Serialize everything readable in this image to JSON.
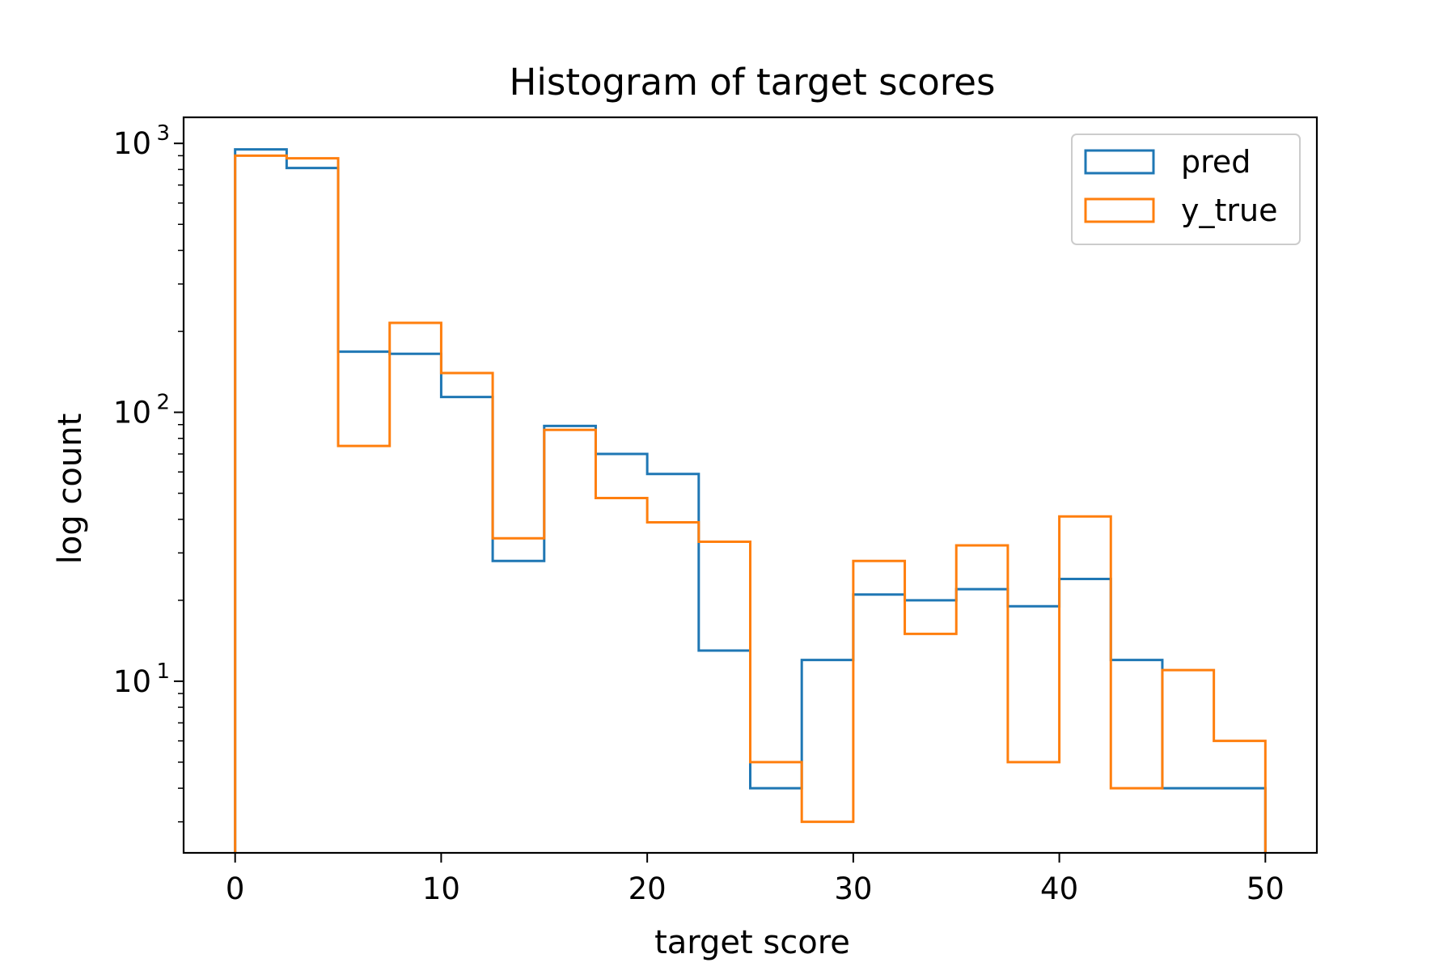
{
  "chart_data": {
    "type": "histogram",
    "title": "Histogram of target scores",
    "xlabel": "target score",
    "ylabel": "log count",
    "yscale": "log",
    "xlim": [
      -2.5,
      52.5
    ],
    "ylim": [
      2.3,
      1250
    ],
    "xticks": [
      0,
      10,
      20,
      30,
      40,
      50
    ],
    "xtick_labels": [
      "0",
      "10",
      "20",
      "30",
      "40",
      "50"
    ],
    "yticks": [
      {
        "value": 10,
        "base": "10",
        "exp": "1"
      },
      {
        "value": 100,
        "base": "10",
        "exp": "2"
      },
      {
        "value": 1000,
        "base": "10",
        "exp": "3"
      }
    ],
    "grid": false,
    "legend_position": "upper right",
    "bin_edges": [
      0,
      2.5,
      5,
      7.5,
      10,
      12.5,
      15,
      17.5,
      20,
      22.5,
      25,
      27.5,
      30,
      32.5,
      35,
      37.5,
      40,
      42.5,
      45,
      47.5,
      50
    ],
    "series": [
      {
        "name": "pred",
        "color": "#1f77b4",
        "values": [
          950,
          810,
          168,
          165,
          114,
          28,
          89,
          70,
          59,
          13,
          4,
          12,
          21,
          20,
          22,
          19,
          24,
          12,
          4,
          4
        ]
      },
      {
        "name": "y_true",
        "color": "#ff7f0e",
        "values": [
          900,
          880,
          75,
          215,
          140,
          34,
          86,
          48,
          39,
          33,
          5,
          3,
          28,
          15,
          32,
          5,
          41,
          4,
          11,
          6
        ]
      }
    ]
  }
}
